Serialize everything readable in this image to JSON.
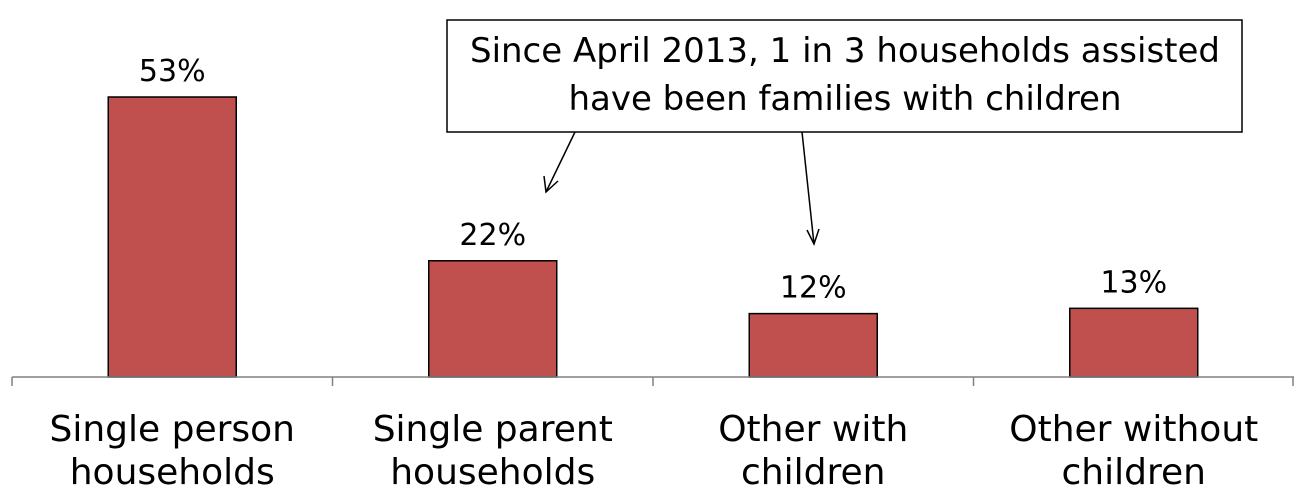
{
  "chart_data": {
    "type": "bar",
    "categories": [
      [
        "Single person",
        "households"
      ],
      [
        "Single parent",
        "households"
      ],
      [
        "Other with",
        "children"
      ],
      [
        "Other without",
        "children"
      ]
    ],
    "values": [
      53,
      22,
      12,
      13
    ],
    "value_labels": [
      "53%",
      "22%",
      "12%",
      "13%"
    ],
    "unit": "%",
    "ylim": [
      0,
      60
    ],
    "grid": false,
    "bar_color": "#C0504D",
    "annotation": {
      "lines": [
        "Since April 2013, 1 in 3 households assisted",
        "have been families with children"
      ],
      "points_to": [
        "Single parent households",
        "Other with children"
      ]
    }
  }
}
